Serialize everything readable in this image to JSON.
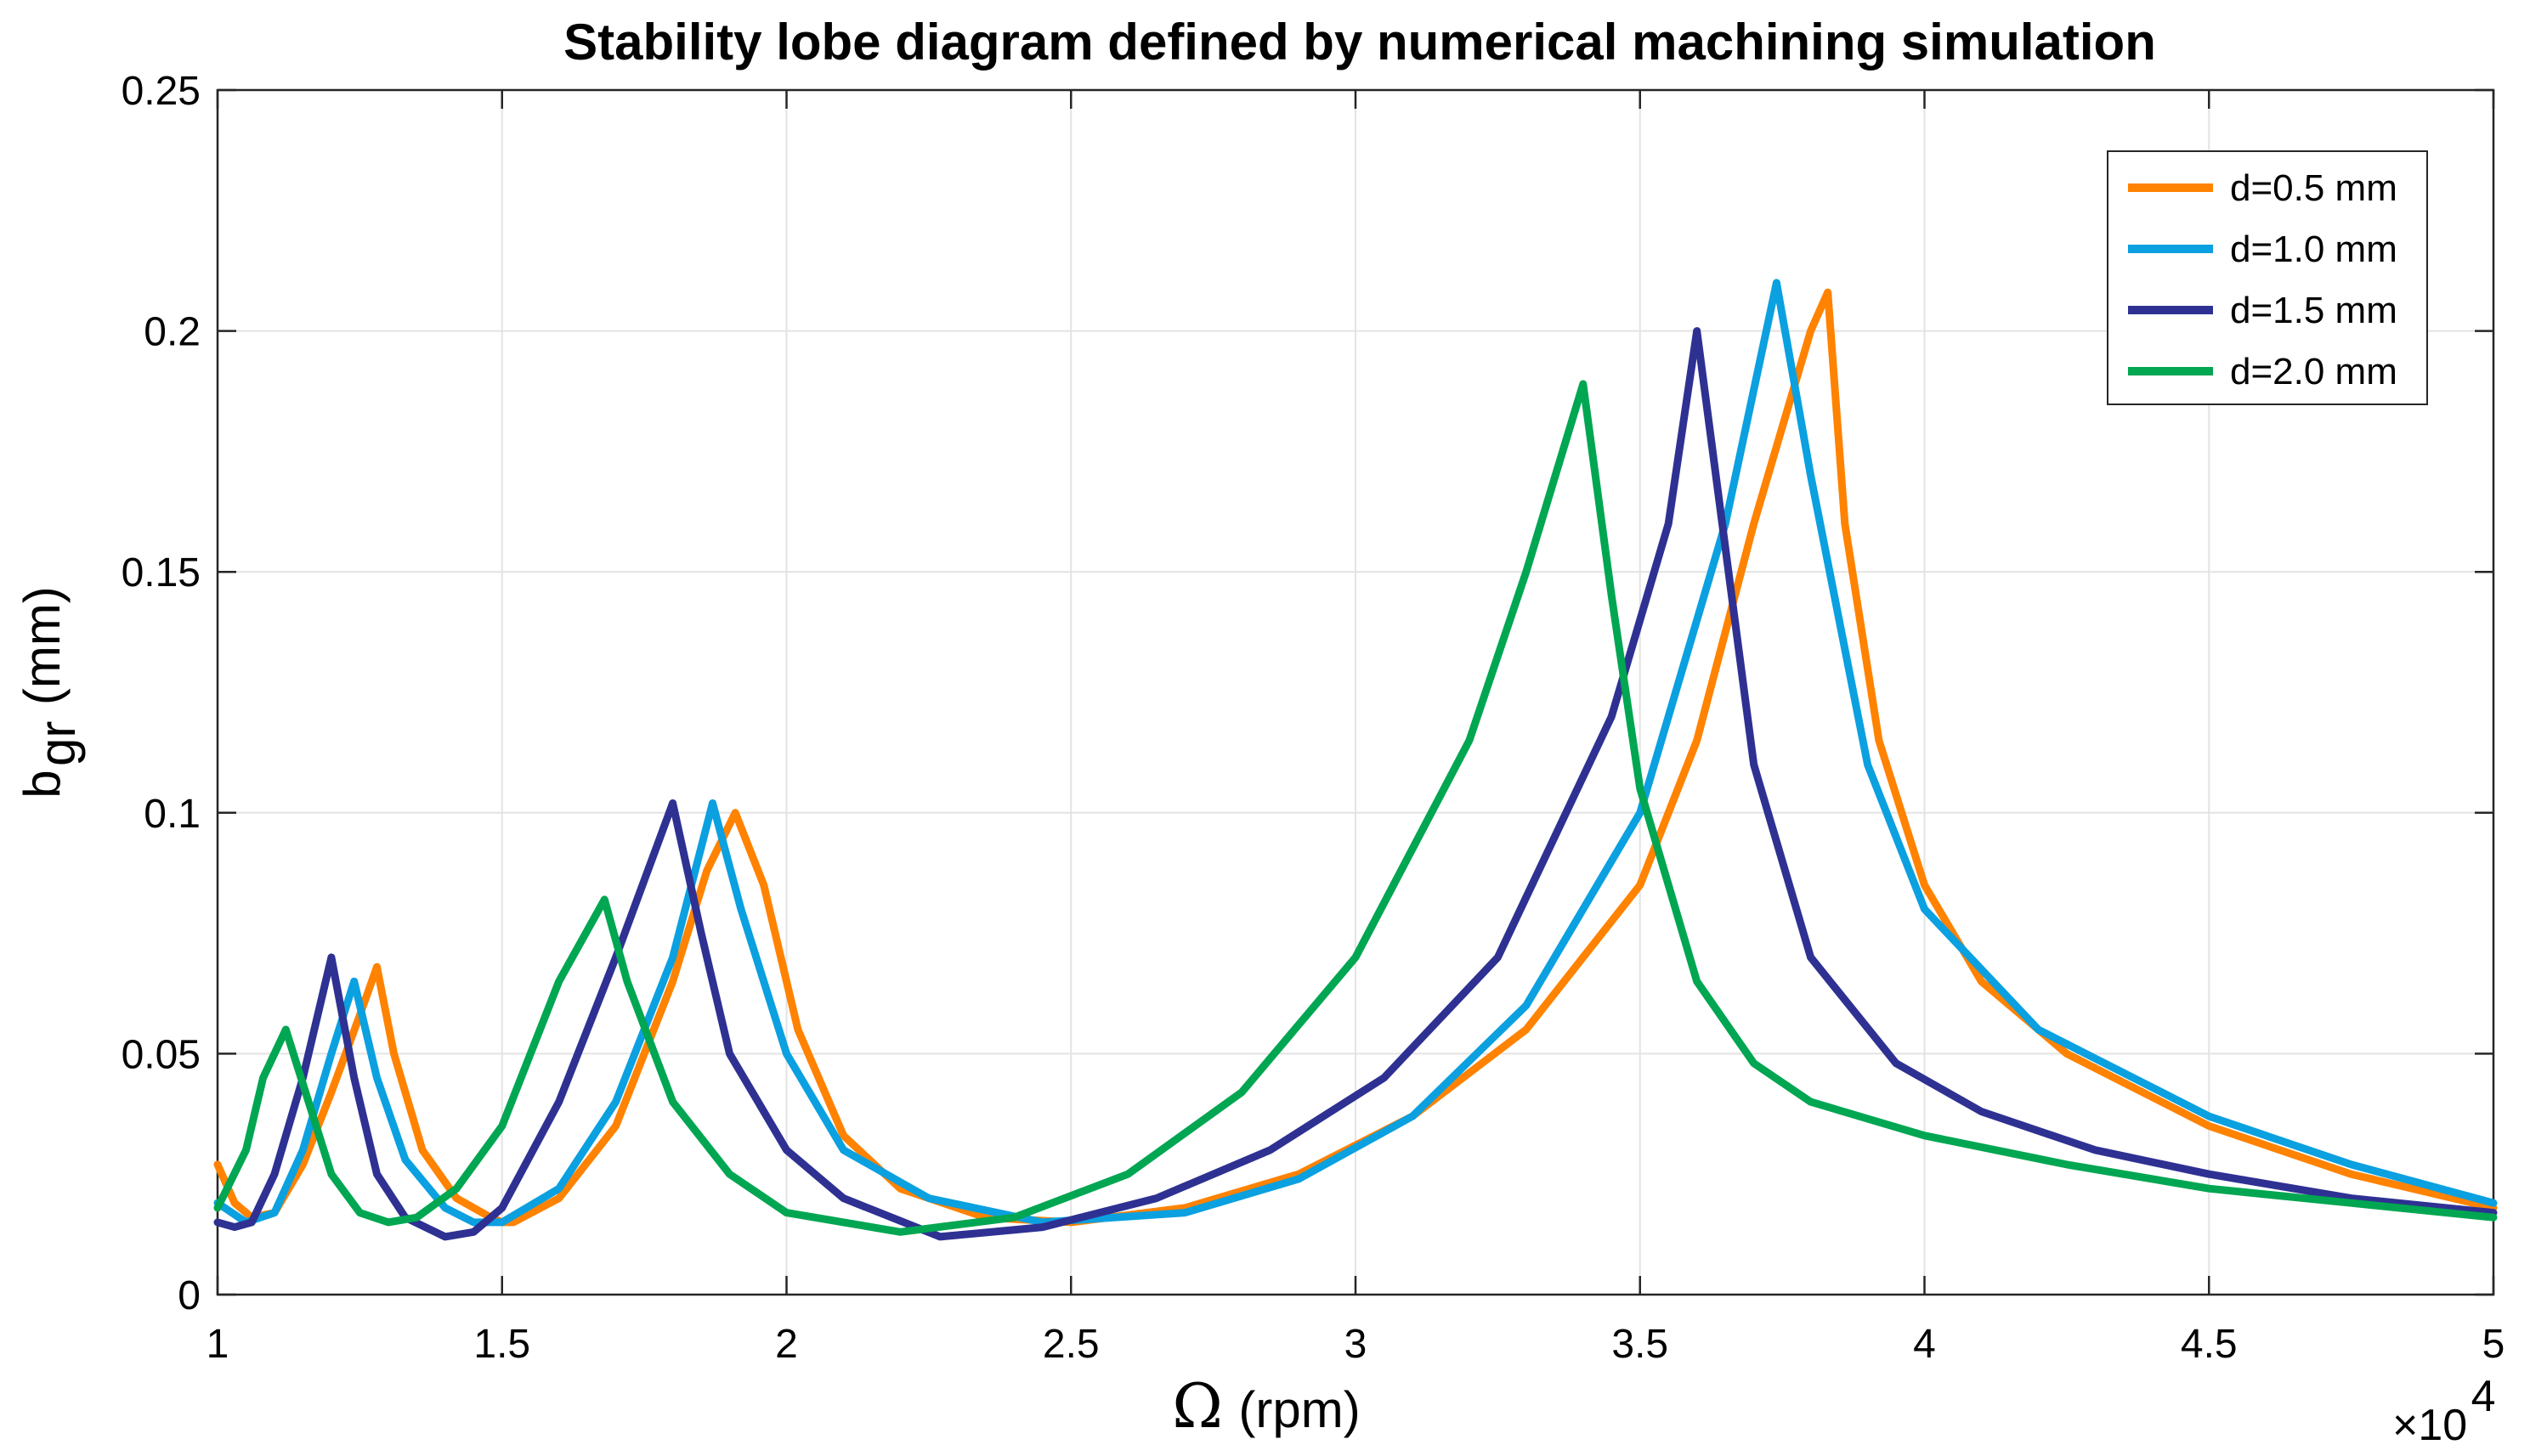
{
  "chart_data": {
    "type": "line",
    "title": "Stability lobe diagram defined by numerical machining simulation",
    "xlabel": {
      "symbol": "Ω",
      "text": "(rpm)"
    },
    "ylabel": {
      "base": "b",
      "subscript": "gr",
      "text": "(mm)"
    },
    "x_exponent": {
      "prefix": "×10",
      "power": "4"
    },
    "xlim": [
      1,
      5
    ],
    "ylim": [
      0,
      0.25
    ],
    "xticks": [
      "1",
      "1.5",
      "2",
      "2.5",
      "3",
      "3.5",
      "4",
      "4.5",
      "5"
    ],
    "yticks": [
      "0",
      "0.05",
      "0.1",
      "0.15",
      "0.2",
      "0.25"
    ],
    "grid": true,
    "legend_position": "top-right",
    "series": [
      {
        "name": "d=0.5 mm",
        "color": "#ff8200",
        "x": [
          1.0,
          1.03,
          1.06,
          1.1,
          1.15,
          1.2,
          1.25,
          1.28,
          1.31,
          1.36,
          1.42,
          1.48,
          1.5,
          1.52,
          1.6,
          1.7,
          1.8,
          1.86,
          1.91,
          1.96,
          2.02,
          2.1,
          2.2,
          2.35,
          2.5,
          2.7,
          2.9,
          3.1,
          3.3,
          3.5,
          3.6,
          3.7,
          3.75,
          3.8,
          3.83,
          3.86,
          3.92,
          4.0,
          4.1,
          4.25,
          4.5,
          4.75,
          5.0
        ],
        "y": [
          0.027,
          0.019,
          0.016,
          0.017,
          0.027,
          0.042,
          0.058,
          0.068,
          0.05,
          0.03,
          0.02,
          0.016,
          0.015,
          0.015,
          0.02,
          0.035,
          0.065,
          0.088,
          0.1,
          0.085,
          0.055,
          0.033,
          0.022,
          0.016,
          0.015,
          0.018,
          0.025,
          0.037,
          0.055,
          0.085,
          0.115,
          0.16,
          0.18,
          0.2,
          0.208,
          0.16,
          0.115,
          0.085,
          0.065,
          0.05,
          0.035,
          0.025,
          0.018
        ]
      },
      {
        "name": "d=1.0 mm",
        "color": "#0ba0e0",
        "x": [
          1.0,
          1.05,
          1.1,
          1.15,
          1.2,
          1.24,
          1.28,
          1.33,
          1.4,
          1.45,
          1.5,
          1.6,
          1.7,
          1.8,
          1.87,
          1.92,
          2.0,
          2.1,
          2.25,
          2.45,
          2.7,
          2.9,
          3.1,
          3.3,
          3.5,
          3.65,
          3.74,
          3.8,
          3.9,
          4.0,
          4.2,
          4.5,
          4.75,
          5.0
        ],
        "y": [
          0.019,
          0.015,
          0.017,
          0.03,
          0.05,
          0.065,
          0.045,
          0.028,
          0.018,
          0.015,
          0.015,
          0.022,
          0.04,
          0.07,
          0.102,
          0.08,
          0.05,
          0.03,
          0.02,
          0.015,
          0.017,
          0.024,
          0.037,
          0.06,
          0.1,
          0.16,
          0.21,
          0.17,
          0.11,
          0.08,
          0.055,
          0.037,
          0.027,
          0.019
        ]
      },
      {
        "name": "d=1.5 mm",
        "color": "#2e3192",
        "x": [
          1.0,
          1.03,
          1.06,
          1.1,
          1.15,
          1.2,
          1.24,
          1.28,
          1.33,
          1.4,
          1.45,
          1.5,
          1.6,
          1.7,
          1.8,
          1.85,
          1.9,
          2.0,
          2.1,
          2.27,
          2.45,
          2.65,
          2.85,
          3.05,
          3.25,
          3.45,
          3.55,
          3.6,
          3.65,
          3.7,
          3.8,
          3.95,
          4.1,
          4.3,
          4.5,
          4.75,
          5.0
        ],
        "y": [
          0.015,
          0.014,
          0.015,
          0.025,
          0.045,
          0.07,
          0.045,
          0.025,
          0.016,
          0.012,
          0.013,
          0.018,
          0.04,
          0.07,
          0.102,
          0.075,
          0.05,
          0.03,
          0.02,
          0.012,
          0.014,
          0.02,
          0.03,
          0.045,
          0.07,
          0.12,
          0.16,
          0.2,
          0.155,
          0.11,
          0.07,
          0.048,
          0.038,
          0.03,
          0.025,
          0.02,
          0.017
        ]
      },
      {
        "name": "d=2.0 mm",
        "color": "#00a651",
        "x": [
          1.0,
          1.05,
          1.08,
          1.12,
          1.16,
          1.2,
          1.25,
          1.3,
          1.35,
          1.42,
          1.5,
          1.6,
          1.68,
          1.72,
          1.8,
          1.9,
          2.0,
          2.2,
          2.4,
          2.6,
          2.8,
          3.0,
          3.2,
          3.3,
          3.4,
          3.45,
          3.5,
          3.6,
          3.7,
          3.8,
          4.0,
          4.25,
          4.5,
          4.75,
          5.0
        ],
        "y": [
          0.018,
          0.03,
          0.045,
          0.055,
          0.04,
          0.025,
          0.017,
          0.015,
          0.016,
          0.022,
          0.035,
          0.065,
          0.082,
          0.065,
          0.04,
          0.025,
          0.017,
          0.013,
          0.016,
          0.025,
          0.042,
          0.07,
          0.115,
          0.15,
          0.189,
          0.145,
          0.105,
          0.065,
          0.048,
          0.04,
          0.033,
          0.027,
          0.022,
          0.019,
          0.016
        ]
      }
    ]
  }
}
